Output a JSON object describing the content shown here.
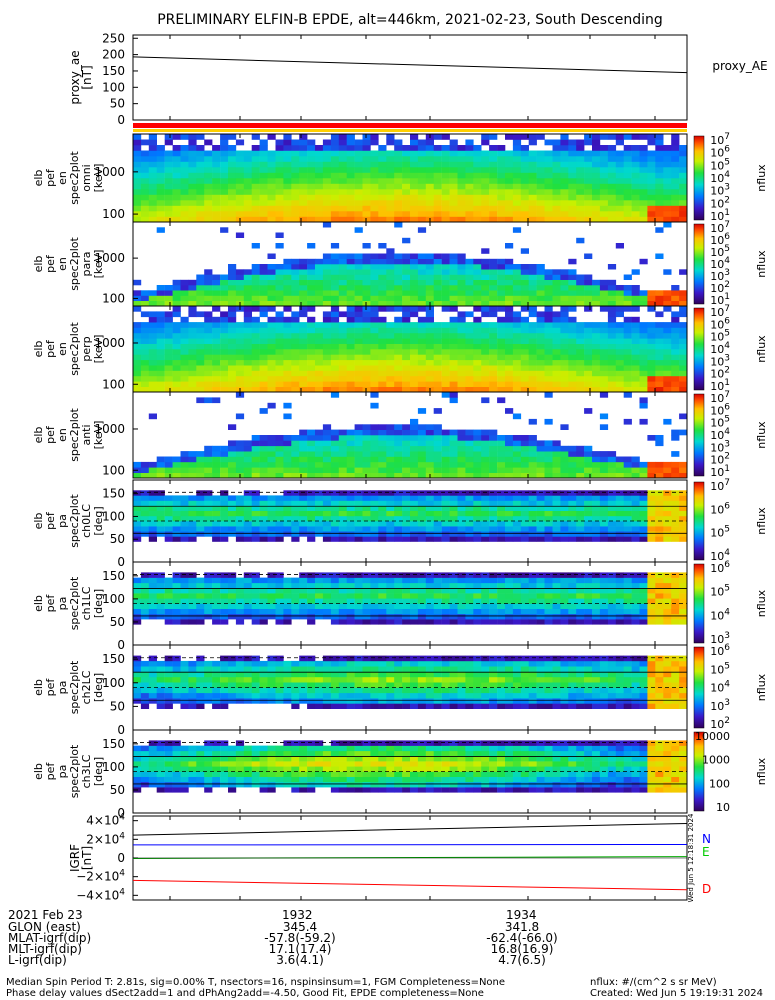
{
  "title": "PRELIMINARY ELFIN-B EPDE, alt=446km, 2021-02-23, South Descending",
  "proxy_panel": {
    "ylabel": [
      "proxy_ae",
      "[nT]"
    ],
    "legend": "proxy_AE",
    "ylim": [
      0,
      260
    ],
    "ticks": [
      "250",
      "200",
      "150",
      "100",
      "50",
      "0"
    ]
  },
  "spec_panels": [
    {
      "ylabel": [
        "elb",
        "pef",
        "en",
        "spec2plot",
        "omni",
        "[keV]"
      ],
      "ticks": [
        "1000",
        "100"
      ],
      "cbar_label": "nflux",
      "cbar_ticks": [
        "10^7",
        "10^6",
        "10^5",
        "10^4",
        "10^3",
        "10^2",
        "10^1"
      ]
    },
    {
      "ylabel": [
        "elb",
        "pef",
        "en",
        "spec2plot",
        "para",
        "[keV]"
      ],
      "ticks": [
        "1000",
        "100"
      ],
      "cbar_label": "nflux",
      "cbar_ticks": [
        "10^7",
        "10^6",
        "10^5",
        "10^4",
        "10^3",
        "10^2",
        "10^1"
      ]
    },
    {
      "ylabel": [
        "elb",
        "pef",
        "en",
        "spec2plot",
        "perp",
        "[keV]"
      ],
      "ticks": [
        "1000",
        "100"
      ],
      "cbar_label": "nflux",
      "cbar_ticks": [
        "10^7",
        "10^6",
        "10^5",
        "10^4",
        "10^3",
        "10^2",
        "10^1"
      ]
    },
    {
      "ylabel": [
        "elb",
        "pef",
        "en",
        "spec2plot",
        "anti",
        "[keV]"
      ],
      "ticks": [
        "1000",
        "100"
      ],
      "cbar_label": "nflux",
      "cbar_ticks": [
        "10^7",
        "10^6",
        "10^5",
        "10^4",
        "10^3",
        "10^2",
        "10^1"
      ]
    },
    {
      "ylabel": [
        "elb",
        "pef",
        "pa",
        "spec2plot",
        "ch0LC",
        "[deg]"
      ],
      "ticks": [
        "150",
        "100",
        "50",
        "0"
      ],
      "cbar_label": "nflux",
      "cbar_ticks": [
        "10^7",
        "10^6",
        "10^5",
        "10^4"
      ]
    },
    {
      "ylabel": [
        "elb",
        "pef",
        "pa",
        "spec2plot",
        "ch1LC",
        "[deg]"
      ],
      "ticks": [
        "150",
        "100",
        "50",
        "0"
      ],
      "cbar_label": "nflux",
      "cbar_ticks": [
        "10^6",
        "10^5",
        "10^4",
        "10^3"
      ]
    },
    {
      "ylabel": [
        "elb",
        "pef",
        "pa",
        "spec2plot",
        "ch2LC",
        "[deg]"
      ],
      "ticks": [
        "150",
        "100",
        "50",
        "0"
      ],
      "cbar_label": "nflux",
      "cbar_ticks": [
        "10^6",
        "10^5",
        "10^4",
        "10^3",
        "10^2"
      ]
    },
    {
      "ylabel": [
        "elb",
        "pef",
        "pa",
        "spec2plot",
        "ch3LC",
        "[deg]"
      ],
      "ticks": [
        "150",
        "100",
        "50",
        "0"
      ],
      "cbar_label": "nflux",
      "cbar_ticks": [
        "10000",
        "1000",
        "100",
        "10"
      ]
    }
  ],
  "igrf_panel": {
    "ylabel": [
      "IGRF",
      "[nT]"
    ],
    "ticks": [
      "4×10^4",
      "2×10^4",
      "0",
      "−2×10^4",
      "−4×10^4"
    ],
    "ylim": [
      -45000,
      45000
    ],
    "legend": [
      {
        "name": "N",
        "color": "#0000ff"
      },
      {
        "name": "E",
        "color": "#00cc00"
      },
      {
        "name": "D",
        "color": "#ff0000"
      }
    ],
    "side_stamp": "Wed Jun  5 12:18:31 2024"
  },
  "chart_data": {
    "type": "line",
    "title": "PRELIMINARY ELFIN-B EPDE, alt=446km, 2021-02-23, South Descending",
    "x_ticks": [
      "1932",
      "1934"
    ],
    "proxy_ae": {
      "name": "proxy_AE",
      "t": [
        0,
        1
      ],
      "values": [
        193,
        145
      ]
    },
    "igrf": {
      "t": [
        0,
        1
      ],
      "series": [
        {
          "name": "N",
          "values": [
            14000,
            14500
          ]
        },
        {
          "name": "E",
          "values": [
            -500,
            1500
          ]
        },
        {
          "name": "D",
          "values": [
            -24000,
            -34000
          ]
        },
        {
          "name": "",
          "values": [
            24500,
            37000
          ]
        }
      ]
    },
    "ylim_igrf": [
      -45000,
      45000
    ]
  },
  "footer": {
    "date": "2021 Feb 23",
    "rows": [
      {
        "label": "GLON (east)",
        "v1": "345.4",
        "v2": "341.8"
      },
      {
        "label": "MLAT-igrf(dip)",
        "v1": "-57.8(-59.2)",
        "v2": "-62.4(-66.0)"
      },
      {
        "label": "MLT-igrf(dip)",
        "v1": "17.1(17.4)",
        "v2": "16.8(16.9)"
      },
      {
        "label": "L-igrf(dip)",
        "v1": "3.6(4.1)",
        "v2": "4.7(6.5)"
      }
    ],
    "note1": "Median Spin Period T: 2.81s, sig=0.00% T, nsectors=16, nspinsinsum=1, FGM Completeness=None",
    "note2": "Phase delay values dSect2add=1 and dPhAng2add=-4.50, Good Fit, EPDE completeness=None",
    "units": "nflux: #/(cm^2 s sr MeV)",
    "created": "Created: Wed Jun  5 19:19:31 2024"
  }
}
